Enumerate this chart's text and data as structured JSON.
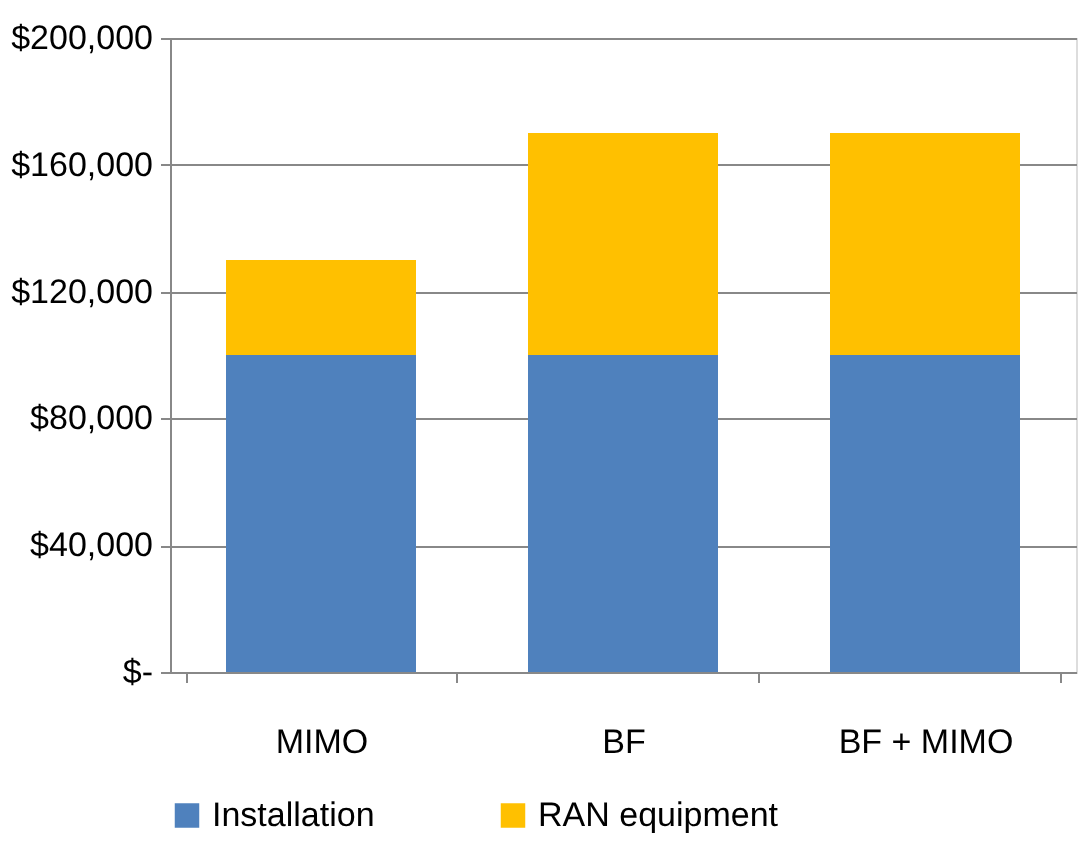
{
  "chart_data": {
    "type": "bar",
    "stacked": true,
    "categories": [
      "MIMO",
      "BF",
      "BF + MIMO"
    ],
    "series": [
      {
        "name": "Installation",
        "color": "#4f81bd",
        "values": [
          100000,
          100000,
          100000
        ]
      },
      {
        "name": "RAN equipment",
        "color": "#ffc000",
        "values": [
          30000,
          70000,
          70000
        ]
      }
    ],
    "ylim": [
      0,
      200000
    ],
    "yticks": [
      {
        "value": 0,
        "label": "$-"
      },
      {
        "value": 40000,
        "label": "$40,000"
      },
      {
        "value": 80000,
        "label": "$80,000"
      },
      {
        "value": 120000,
        "label": "$120,000"
      },
      {
        "value": 160000,
        "label": "$160,000"
      },
      {
        "value": 200000,
        "label": "$200,000"
      }
    ],
    "grid": "y",
    "legend": "bottom"
  }
}
